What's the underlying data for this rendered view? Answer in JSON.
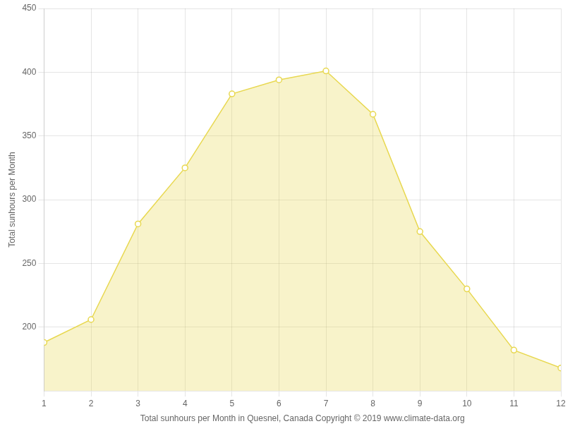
{
  "chart_data": {
    "type": "area",
    "x": [
      1,
      2,
      3,
      4,
      5,
      6,
      7,
      8,
      9,
      10,
      11,
      12
    ],
    "values": [
      188,
      206,
      281,
      325,
      383,
      394,
      401,
      367,
      275,
      230,
      182,
      168
    ],
    "color": "#E8D850",
    "marker": "circle",
    "xlabel": "Total sunhours per Month in Quesnel, Canada Copyright © 2019 www.climate-data.org",
    "ylabel": "Total sunhours per Month",
    "xlim": [
      1,
      12
    ],
    "xticks": [
      1,
      2,
      3,
      4,
      5,
      6,
      7,
      8,
      9,
      10,
      11,
      12
    ],
    "ylim": [
      150,
      450
    ],
    "yticks": [
      200,
      250,
      300,
      350,
      400,
      450
    ],
    "grid": true
  }
}
